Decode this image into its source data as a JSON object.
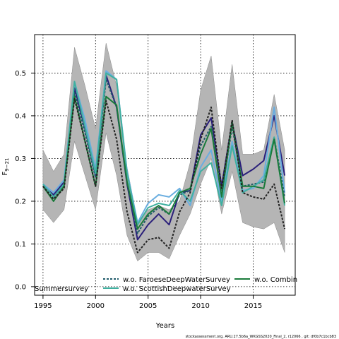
{
  "chart_data": {
    "type": "line",
    "xlabel": "Years",
    "ylabel_main": "F",
    "ylabel_sub": "9−21",
    "xlim": [
      1994.2,
      2019.0
    ],
    "ylim": [
      -0.02,
      0.59
    ],
    "x_ticks": [
      1995,
      2000,
      2005,
      2010,
      2015
    ],
    "y_ticks": [
      0.0,
      0.1,
      0.2,
      0.3,
      0.4,
      0.5
    ],
    "y_tick_labels": [
      "0.0",
      "0.1",
      "0.2",
      "0.3",
      "0.4",
      "0.5"
    ],
    "grid": true,
    "x": [
      1995,
      1996,
      1997,
      1998,
      1999,
      2000,
      2001,
      2002,
      2003,
      2004,
      2005,
      2006,
      2007,
      2008,
      2009,
      2010,
      2011,
      2012,
      2013,
      2014,
      2015,
      2016,
      2017,
      2018
    ],
    "band": {
      "upper": [
        0.32,
        0.27,
        0.31,
        0.56,
        0.47,
        0.37,
        0.57,
        0.47,
        0.28,
        0.15,
        0.18,
        0.19,
        0.18,
        0.2,
        0.29,
        0.46,
        0.54,
        0.32,
        0.52,
        0.31,
        0.31,
        0.32,
        0.45,
        0.32
      ],
      "lower": [
        0.18,
        0.15,
        0.18,
        0.34,
        0.26,
        0.18,
        0.36,
        0.26,
        0.12,
        0.06,
        0.08,
        0.08,
        0.065,
        0.12,
        0.17,
        0.24,
        0.3,
        0.17,
        0.27,
        0.15,
        0.14,
        0.135,
        0.15,
        0.08
      ]
    },
    "series": [
      {
        "name": "",
        "color": "#2a1f7a",
        "style": "solid",
        "values": [
          0.235,
          0.215,
          0.245,
          0.465,
          0.37,
          0.26,
          0.495,
          0.42,
          0.24,
          0.11,
          0.145,
          0.17,
          0.145,
          0.22,
          0.225,
          0.355,
          0.395,
          0.235,
          0.385,
          0.26,
          0.275,
          0.295,
          0.4,
          0.26
        ]
      },
      {
        "name": "",
        "color": "#6aaee0",
        "style": "solid",
        "values": [
          0.24,
          0.22,
          0.25,
          0.48,
          0.39,
          0.275,
          0.505,
          0.485,
          0.27,
          0.15,
          0.195,
          0.215,
          0.21,
          0.23,
          0.19,
          0.28,
          0.32,
          0.2,
          0.34,
          0.225,
          0.23,
          0.26,
          0.42,
          0.22
        ]
      },
      {
        "name": "w.o. FaroeseDeepWaterSurvey",
        "color": "#1f5a6a",
        "style": "dashed",
        "values": [
          0.235,
          0.205,
          0.24,
          0.455,
          0.36,
          0.255,
          0.485,
          0.42,
          0.245,
          0.125,
          0.165,
          0.185,
          0.17,
          0.215,
          0.225,
          0.33,
          0.375,
          0.215,
          0.375,
          0.235,
          0.24,
          0.245,
          0.35,
          0.21
        ]
      },
      {
        "name": "w.o. ScottishDeepwaterSurvey",
        "color": "#40b0a0",
        "style": "solid",
        "values": [
          0.24,
          0.21,
          0.24,
          0.48,
          0.375,
          0.265,
          0.5,
          0.485,
          0.265,
          0.145,
          0.185,
          0.195,
          0.19,
          0.225,
          0.2,
          0.27,
          0.29,
          0.19,
          0.33,
          0.22,
          0.235,
          0.25,
          0.35,
          0.19
        ]
      },
      {
        "name": "w.o. Combin",
        "color": "#1a7a3a",
        "style": "solid",
        "values": [
          0.235,
          0.2,
          0.235,
          0.445,
          0.34,
          0.235,
          0.445,
          0.425,
          0.245,
          0.135,
          0.17,
          0.19,
          0.17,
          0.22,
          0.23,
          0.31,
          0.37,
          0.21,
          0.385,
          0.235,
          0.235,
          0.23,
          0.345,
          0.195
        ]
      },
      {
        "name": "",
        "color": "#222222",
        "style": "dashed",
        "values": [
          0.235,
          0.205,
          0.23,
          0.44,
          0.34,
          0.235,
          0.435,
          0.345,
          0.175,
          0.08,
          0.11,
          0.115,
          0.09,
          0.175,
          0.22,
          0.345,
          0.42,
          0.23,
          0.39,
          0.22,
          0.21,
          0.205,
          0.24,
          0.135
        ]
      }
    ],
    "legend_entries": [
      {
        "label": "Summersurvey",
        "swatch": false
      },
      {
        "label": "w.o. FaroeseDeepWaterSurvey",
        "swatch": true,
        "series": 2
      },
      {
        "label": "w.o. ScottishDeepwaterSurvey",
        "swatch": true,
        "series": 3
      },
      {
        "label": "w.o. Combin",
        "swatch": true,
        "series": 4
      }
    ]
  },
  "footer": "stockassessment.org, ARU.27.5b6a_WKGSS2020_Final_2, r12066 , git: df0b7c1bcb83"
}
